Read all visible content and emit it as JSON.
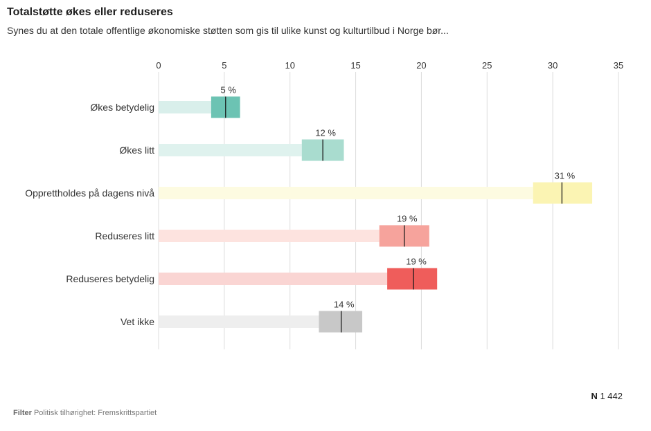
{
  "header": {
    "title": "Totalstøtte økes eller reduseres",
    "subtitle": "Synes du at den totale offentlige økonomiske støtten som gis til ulike kunst og kulturtilbud i Norge bør..."
  },
  "footer": {
    "n_label": "N",
    "n_value": "1 442",
    "filter_label": "Filter",
    "filter_value": "Politisk tilhørighet: Fremskrittspartiet"
  },
  "chart_data": {
    "type": "bar",
    "orientation": "horizontal",
    "title": "Totalstøtte økes eller reduseres",
    "xlim": [
      0,
      35
    ],
    "xticks": [
      0,
      5,
      10,
      15,
      20,
      25,
      30,
      35
    ],
    "categories": [
      "Økes betydelig",
      "Økes litt",
      "Opprettholdes på dagens nivå",
      "Reduseres litt",
      "Reduseres betydelig",
      "Vet ikke"
    ],
    "values": [
      5,
      12,
      31,
      19,
      19,
      14
    ],
    "labels": [
      "5 %",
      "12 %",
      "31 %",
      "19 %",
      "19 %",
      "14 %"
    ],
    "point_estimates": [
      5.1,
      12.5,
      30.7,
      18.7,
      19.4,
      13.9
    ],
    "interval_low": [
      4.0,
      10.9,
      28.5,
      16.8,
      17.4,
      12.2
    ],
    "interval_high": [
      6.2,
      14.1,
      33.0,
      20.6,
      21.2,
      15.5
    ],
    "bar_colors": [
      "#d9efeb",
      "#dff2ee",
      "#fdfbe1",
      "#fde3df",
      "#fad5d3",
      "#eeeeee"
    ],
    "interval_colors": [
      "#6cc3b3",
      "#a9dccf",
      "#fbf4b3",
      "#f6a39c",
      "#ef5d5b",
      "#c8c8c8"
    ],
    "grid": true
  }
}
